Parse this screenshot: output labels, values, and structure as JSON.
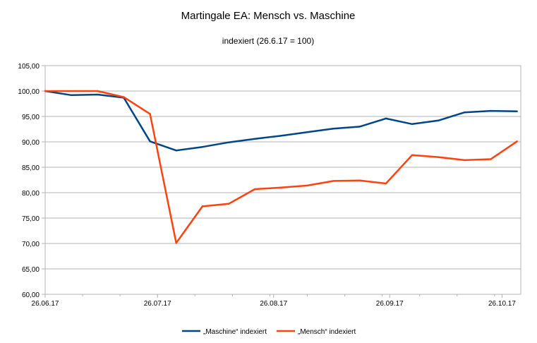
{
  "chart_data": {
    "type": "line",
    "title": "Martingale EA: Mensch vs. Maschine",
    "subtitle": "indexiert (26.6.17 = 100)",
    "xlabel": "",
    "ylabel": "",
    "ylim": [
      60,
      105
    ],
    "y_ticks": [
      "60,00",
      "65,00",
      "70,00",
      "75,00",
      "80,00",
      "85,00",
      "90,00",
      "95,00",
      "100,00",
      "105,00"
    ],
    "x_ticks": [
      "26.06.17",
      "26.07.17",
      "26.08.17",
      "26.09.17",
      "26.10.17"
    ],
    "x_range": [
      "2017-06-26",
      "2017-10-31"
    ],
    "grid": "horizontal",
    "legend_position": "bottom",
    "series": [
      {
        "name": "„Maschine“ indexiert",
        "color": "#004586",
        "x": [
          "2017-06-26",
          "2017-07-03",
          "2017-07-10",
          "2017-07-17",
          "2017-07-24",
          "2017-07-31",
          "2017-08-07",
          "2017-08-14",
          "2017-08-21",
          "2017-08-28",
          "2017-09-04",
          "2017-09-11",
          "2017-09-18",
          "2017-09-25",
          "2017-10-02",
          "2017-10-09",
          "2017-10-16",
          "2017-10-23",
          "2017-10-30"
        ],
        "values": [
          100.0,
          99.2,
          99.3,
          98.7,
          90.1,
          88.3,
          89.0,
          89.9,
          90.6,
          91.2,
          91.9,
          92.6,
          93.0,
          94.6,
          93.5,
          94.2,
          95.8,
          96.1,
          96.0
        ]
      },
      {
        "name": "„Mensch“ indexiert",
        "color": "#ff420e",
        "x": [
          "2017-06-26",
          "2017-07-03",
          "2017-07-10",
          "2017-07-17",
          "2017-07-24",
          "2017-07-31",
          "2017-08-07",
          "2017-08-14",
          "2017-08-21",
          "2017-08-28",
          "2017-09-04",
          "2017-09-11",
          "2017-09-18",
          "2017-09-25",
          "2017-10-02",
          "2017-10-09",
          "2017-10-16",
          "2017-10-23",
          "2017-10-30"
        ],
        "values": [
          100.0,
          100.0,
          100.0,
          98.8,
          95.5,
          70.1,
          77.3,
          77.8,
          80.7,
          81.0,
          81.4,
          82.3,
          82.4,
          81.8,
          87.4,
          87.0,
          86.4,
          86.6,
          90.1
        ]
      }
    ]
  }
}
